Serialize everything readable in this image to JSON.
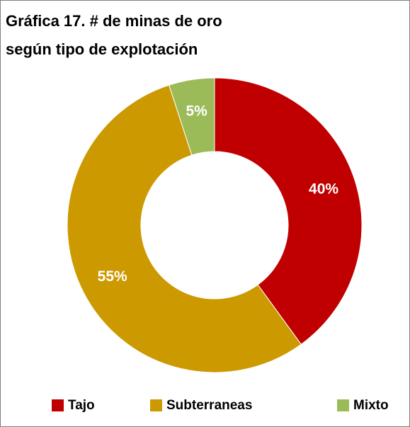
{
  "chart_data": {
    "type": "donut",
    "title": [
      "Gráfica 17. # de minas de oro",
      "según tipo de explotación"
    ],
    "categories": [
      "Tajo",
      "Subterraneas",
      "Mixto"
    ],
    "values": [
      40,
      55,
      5
    ],
    "value_labels": [
      "40%",
      "55%",
      "5%"
    ],
    "colors": [
      "#c00000",
      "#cc9900",
      "#9bbb59"
    ],
    "legend": "bottom"
  }
}
